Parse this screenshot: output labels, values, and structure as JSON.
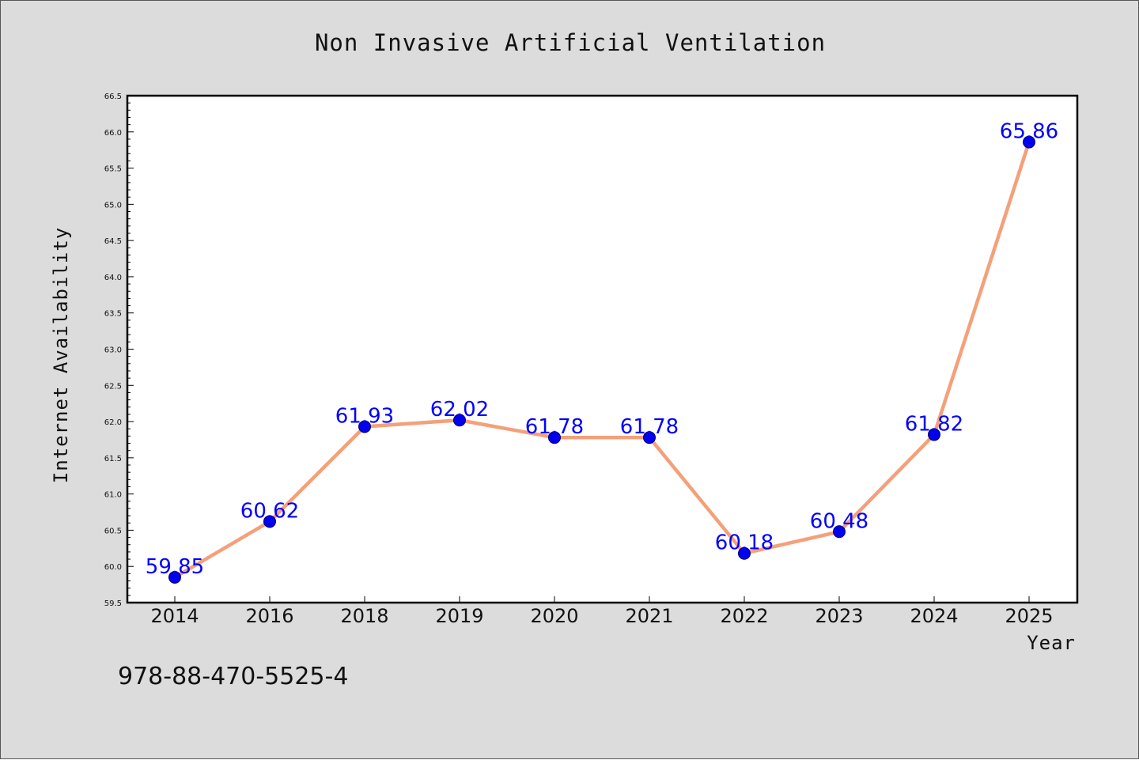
{
  "chart_data": {
    "type": "line",
    "title": "Non Invasive Artificial Ventilation",
    "xlabel": "Year",
    "ylabel": "Internet Availability",
    "categories": [
      "2014",
      "2016",
      "2018",
      "2019",
      "2020",
      "2021",
      "2022",
      "2023",
      "2024",
      "2025"
    ],
    "series": [
      {
        "values": [
          59.85,
          60.62,
          61.93,
          62.02,
          61.78,
          61.78,
          60.18,
          60.48,
          61.82,
          65.86
        ],
        "line_color": "#f4a07a",
        "marker_color": "#0000ee"
      }
    ],
    "data_labels": [
      "59.85",
      "60.62",
      "61.93",
      "62.02",
      "61.78",
      "61.78",
      "60.18",
      "60.48",
      "61.82",
      "65.86"
    ],
    "ylim": [
      59.5,
      66.5
    ],
    "y_ticks": [
      "59.5",
      "60.0",
      "60.5",
      "61.0",
      "61.5",
      "62.0",
      "62.5",
      "63.0",
      "63.5",
      "64.0",
      "64.5",
      "65.0",
      "65.5",
      "66.0",
      "66.5"
    ],
    "grid": false,
    "legend": "none",
    "label_color": "#0000ff",
    "background": "#dcdcdc"
  },
  "footer_text": "978-88-470-5525-4"
}
